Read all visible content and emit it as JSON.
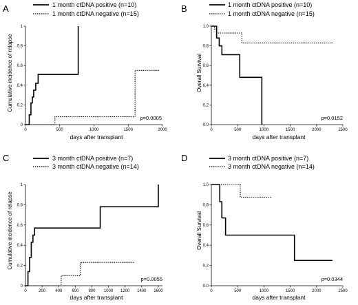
{
  "chart_data": [
    {
      "id": "A",
      "type": "line",
      "panel_label": "A",
      "ylabel": "Cumulative incidence of relapse",
      "xlabel": "days after transplant",
      "xlim": [
        0,
        2000
      ],
      "ylim": [
        0,
        1.0
      ],
      "xticks": [
        "0",
        "500",
        "1000",
        "1500",
        "2000"
      ],
      "yticks": [
        "0",
        "0.2",
        "0.4",
        "0.6",
        "0.8",
        "1"
      ],
      "p_value": "p=0.0005",
      "series": [
        {
          "name": "1 month ctDNA positive (n=10)",
          "style": "solid",
          "x": [
            0,
            55,
            80,
            100,
            120,
            150,
            185,
            770,
            770
          ],
          "y": [
            0,
            0.1,
            0.22,
            0.28,
            0.35,
            0.42,
            0.51,
            0.51,
            1.0
          ]
        },
        {
          "name": "1 month ctDNA negative (n=15)",
          "style": "dotted",
          "x": [
            0,
            430,
            1580,
            1600,
            1950
          ],
          "y": [
            0,
            0.08,
            0.08,
            0.55,
            0.55
          ]
        }
      ]
    },
    {
      "id": "B",
      "type": "line",
      "panel_label": "B",
      "ylabel": "Overall Survival",
      "xlabel": "days after transplant",
      "xlim": [
        0,
        2500
      ],
      "ylim": [
        0,
        1.0
      ],
      "xticks": [
        "0",
        "500",
        "1000",
        "1500",
        "2000",
        "2500"
      ],
      "yticks": [
        "0.0",
        "0.2",
        "0.4",
        "0.6",
        "0.8",
        "1.0"
      ],
      "p_value": "p=0.0152",
      "series": [
        {
          "name": "1 month ctDNA positive (n=10)",
          "style": "solid",
          "x": [
            0,
            100,
            150,
            200,
            540,
            960,
            960
          ],
          "y": [
            1.0,
            0.88,
            0.8,
            0.71,
            0.48,
            0.48,
            0.0
          ]
        },
        {
          "name": "1 month ctDNA negative (n=15)",
          "style": "dotted",
          "x": [
            0,
            60,
            100,
            580,
            2300
          ],
          "y": [
            1.0,
            0.97,
            0.93,
            0.83,
            0.83
          ]
        }
      ]
    },
    {
      "id": "C",
      "type": "line",
      "panel_label": "C",
      "ylabel": "Cumulative incidence of relapse",
      "xlabel": "days after transplant",
      "xlim": [
        0,
        1650
      ],
      "ylim": [
        0,
        1.0
      ],
      "xticks": [
        "0",
        "200",
        "400",
        "600",
        "800",
        "1000",
        "1200",
        "1400",
        "1600"
      ],
      "yticks": [
        "0",
        "0.2",
        "0.4",
        "0.6",
        "0.8",
        "1"
      ],
      "p_value": "p=0.0055",
      "series": [
        {
          "name": "3 month ctDNA positive (n=7)",
          "style": "solid",
          "x": [
            0,
            30,
            50,
            70,
            90,
            110,
            900,
            1600,
            1600
          ],
          "y": [
            0,
            0.14,
            0.28,
            0.43,
            0.5,
            0.57,
            0.78,
            0.78,
            1.0
          ]
        },
        {
          "name": "3 month ctDNA negative (n=14)",
          "style": "dotted",
          "x": [
            0,
            430,
            660,
            1320
          ],
          "y": [
            0,
            0.1,
            0.23,
            0.23
          ]
        }
      ]
    },
    {
      "id": "D",
      "type": "line",
      "panel_label": "D",
      "ylabel": "Overall Survival",
      "xlabel": "days after transplant",
      "xlim": [
        0,
        2500
      ],
      "ylim": [
        0,
        1.0
      ],
      "xticks": [
        "0",
        "500",
        "1000",
        "1500",
        "2000",
        "2500"
      ],
      "yticks": [
        "0.0",
        "0.2",
        "0.4",
        "0.6",
        "0.8",
        "1.0"
      ],
      "p_value": "p=0.0344",
      "series": [
        {
          "name": "3 month ctDNA positive (n=7)",
          "style": "solid",
          "x": [
            0,
            160,
            200,
            270,
            1580,
            2300
          ],
          "y": [
            1.0,
            0.83,
            0.67,
            0.5,
            0.25,
            0.25
          ]
        },
        {
          "name": "3 month ctDNA negative (n=14)",
          "style": "dotted",
          "x": [
            0,
            550,
            1140
          ],
          "y": [
            1.0,
            0.875,
            0.875
          ]
        }
      ]
    }
  ]
}
